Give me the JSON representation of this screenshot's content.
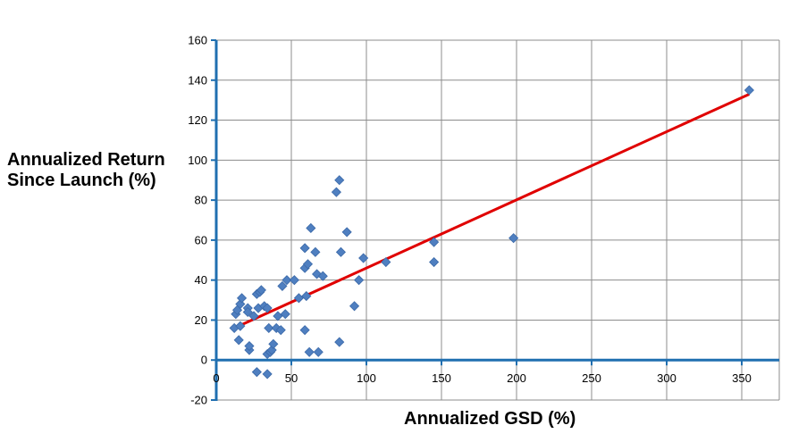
{
  "chart_data": {
    "type": "scatter",
    "title": "",
    "xlabel": "Annualized GSD (%)",
    "ylabel_lines": [
      "Annualized Return",
      "Since Launch (%)"
    ],
    "xlim": [
      0,
      375
    ],
    "ylim": [
      -20,
      160
    ],
    "xticks": [
      0,
      50,
      100,
      150,
      200,
      250,
      300,
      350
    ],
    "yticks": [
      -20,
      0,
      20,
      40,
      60,
      80,
      100,
      120,
      140,
      160
    ],
    "grid": true,
    "legend": "none",
    "marker_color": "#4f7fc0",
    "line_color": "#e00000",
    "axis_color": "#1f6fb0",
    "grid_color": "#8c8c8c",
    "points": [
      [
        12,
        16
      ],
      [
        13,
        23
      ],
      [
        14,
        25
      ],
      [
        15,
        10
      ],
      [
        16,
        17
      ],
      [
        16,
        28
      ],
      [
        17,
        31
      ],
      [
        21,
        26
      ],
      [
        21,
        24
      ],
      [
        22,
        5
      ],
      [
        22,
        7
      ],
      [
        25,
        22
      ],
      [
        27,
        33
      ],
      [
        27,
        -6
      ],
      [
        28,
        26
      ],
      [
        29,
        34
      ],
      [
        30,
        35
      ],
      [
        32,
        27
      ],
      [
        34,
        26
      ],
      [
        34,
        -7
      ],
      [
        34,
        3
      ],
      [
        35,
        16
      ],
      [
        36,
        4
      ],
      [
        37,
        5
      ],
      [
        38,
        8
      ],
      [
        40,
        16
      ],
      [
        41,
        22
      ],
      [
        43,
        15
      ],
      [
        44,
        37
      ],
      [
        46,
        23
      ],
      [
        47,
        40
      ],
      [
        52,
        40
      ],
      [
        55,
        31
      ],
      [
        59,
        56
      ],
      [
        59,
        46
      ],
      [
        59,
        15
      ],
      [
        60,
        32
      ],
      [
        61,
        48
      ],
      [
        62,
        4
      ],
      [
        63,
        66
      ],
      [
        66,
        54
      ],
      [
        67,
        43
      ],
      [
        68,
        4
      ],
      [
        71,
        42
      ],
      [
        80,
        84
      ],
      [
        82,
        90
      ],
      [
        82,
        9
      ],
      [
        83,
        54
      ],
      [
        87,
        64
      ],
      [
        92,
        27
      ],
      [
        95,
        40
      ],
      [
        98,
        51
      ],
      [
        113,
        49
      ],
      [
        145,
        59
      ],
      [
        145,
        49
      ],
      [
        198,
        61
      ],
      [
        355,
        135
      ]
    ],
    "trendline": [
      [
        12,
        16
      ],
      [
        355,
        133
      ]
    ]
  }
}
